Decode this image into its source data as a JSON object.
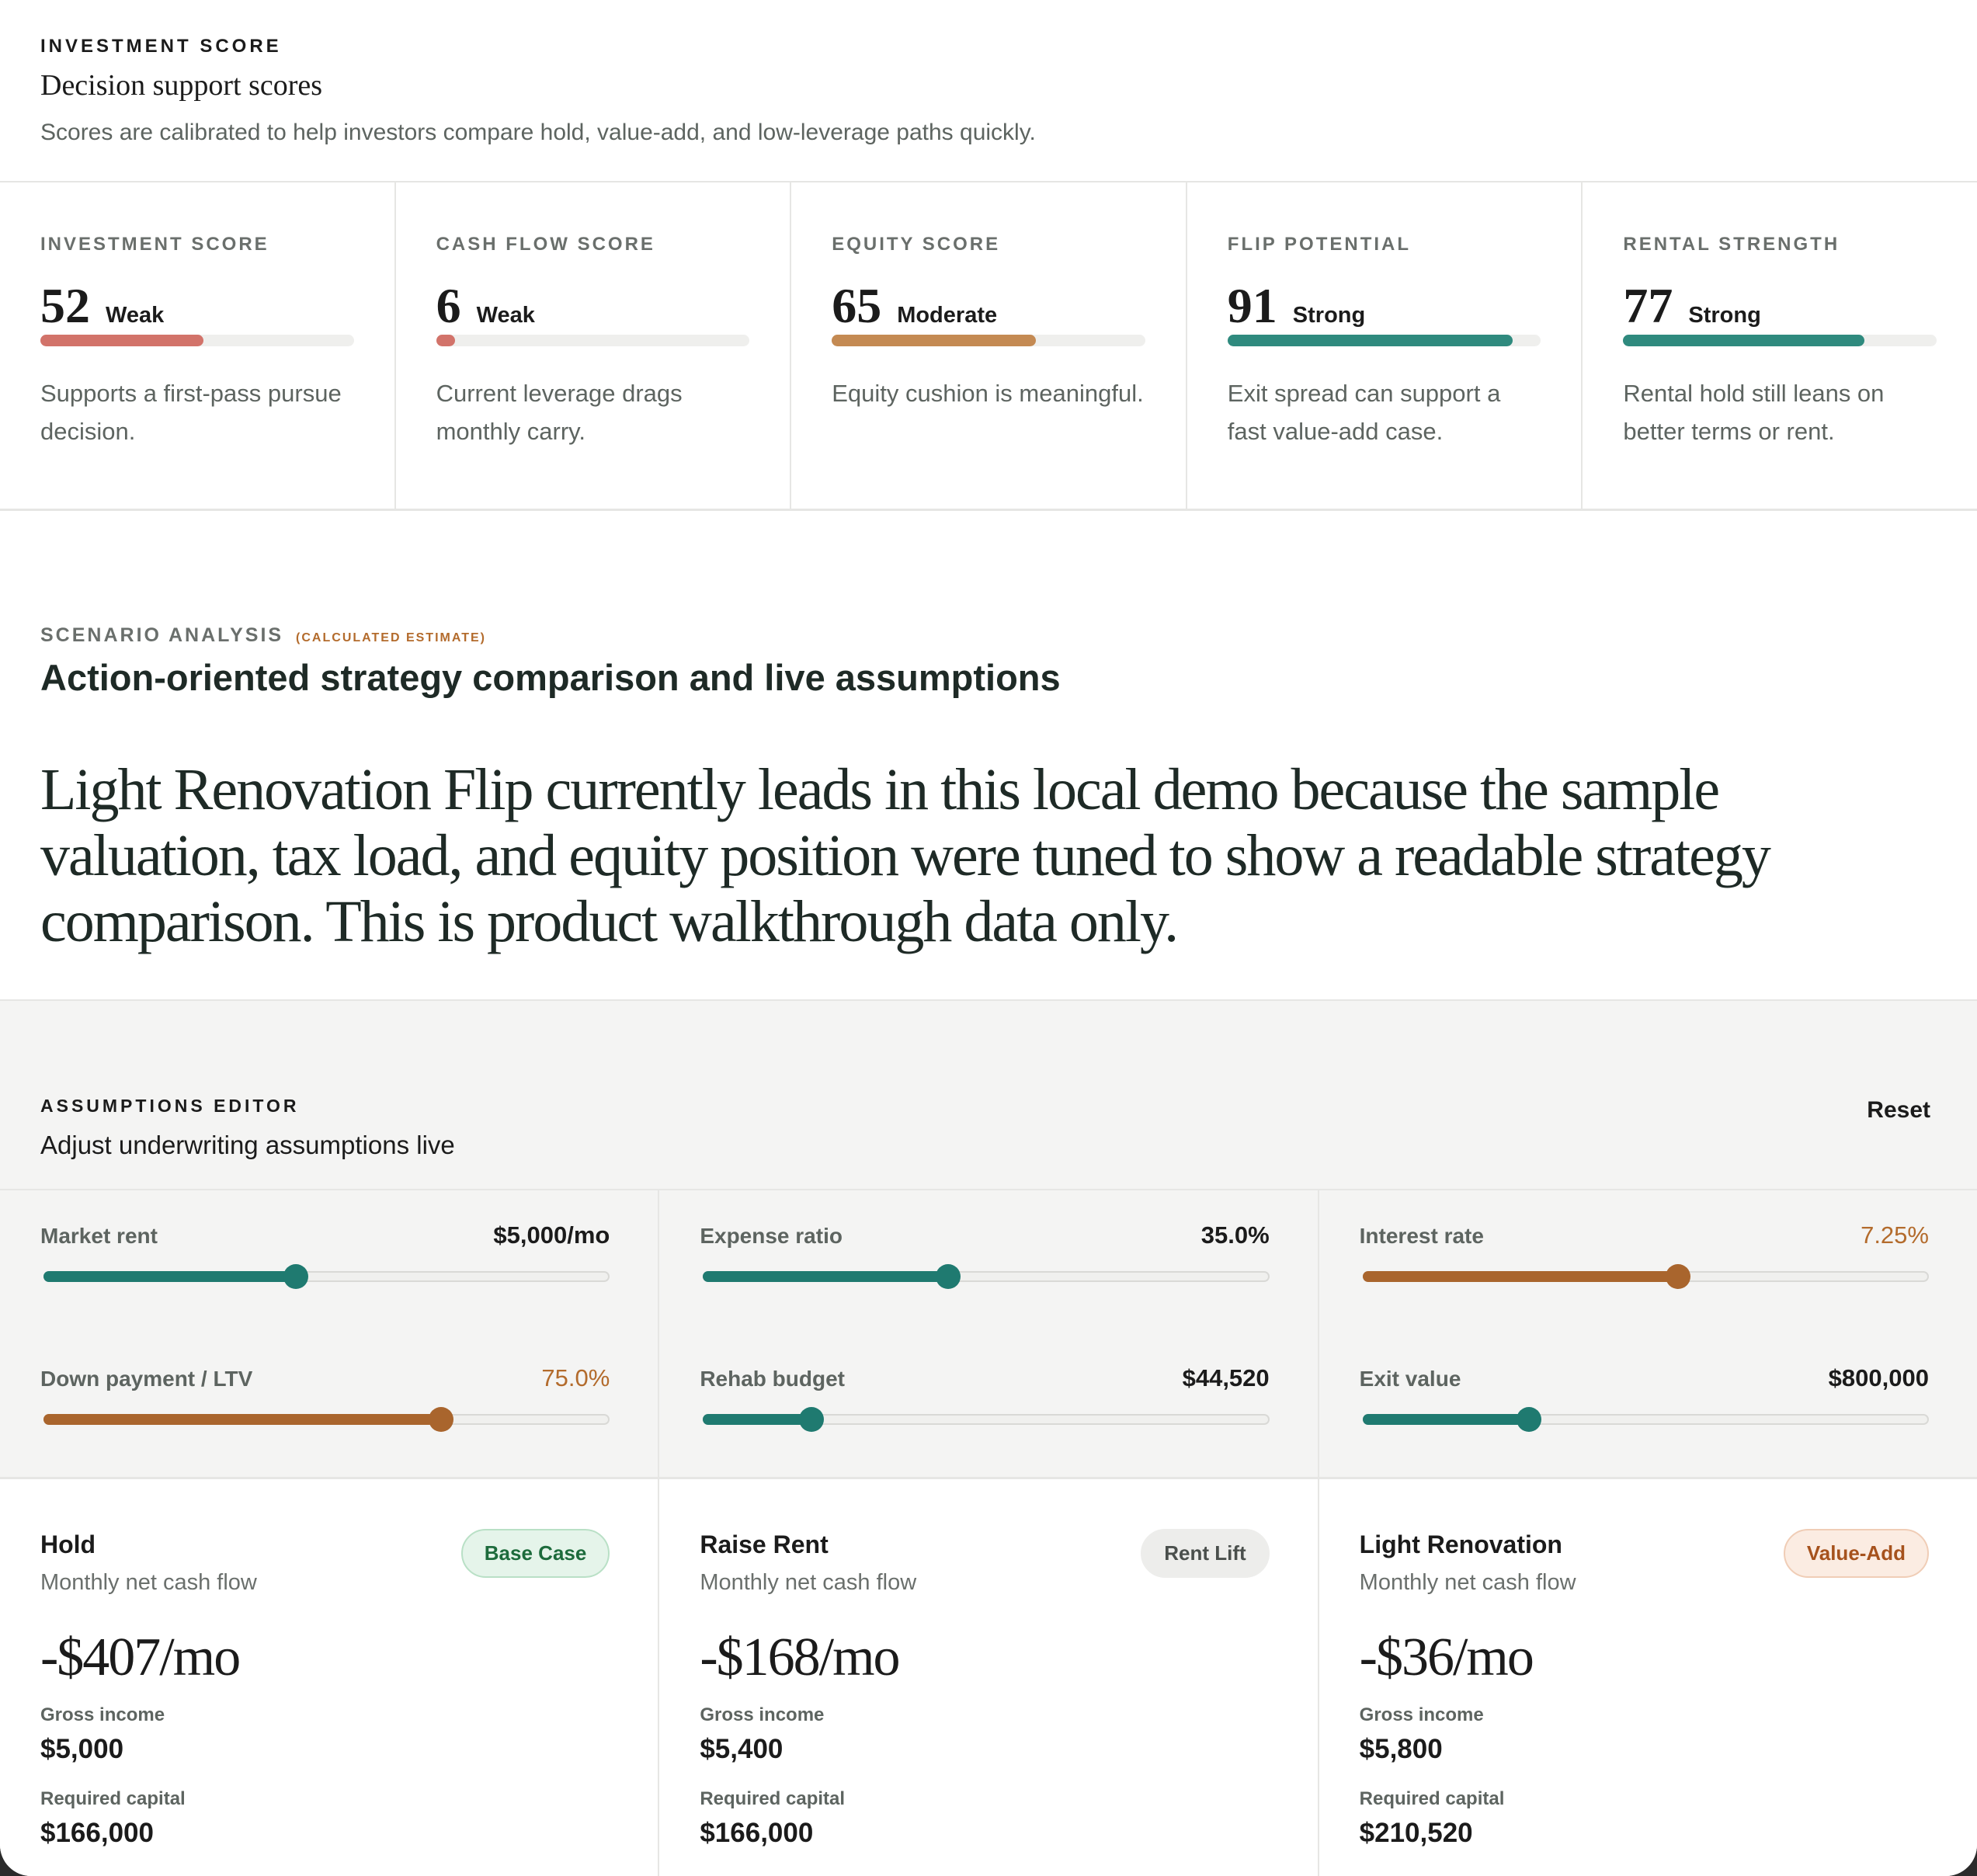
{
  "header": {
    "eyebrow": "INVESTMENT SCORE",
    "title": "Decision support scores",
    "description": "Scores are calibrated to help investors compare hold, value-add, and low-leverage paths quickly."
  },
  "scores": [
    {
      "label": "INVESTMENT SCORE",
      "value": "52",
      "rating": "Weak",
      "level": 0.52,
      "color": "#d2736a",
      "note": "Supports a first-pass pursue decision."
    },
    {
      "label": "CASH FLOW SCORE",
      "value": "6",
      "rating": "Weak",
      "level": 0.06,
      "color": "#d2736a",
      "note": "Current leverage drags monthly carry."
    },
    {
      "label": "EQUITY SCORE",
      "value": "65",
      "rating": "Moderate",
      "level": 0.65,
      "color": "#c48a53",
      "note": "Equity cushion is meaningful."
    },
    {
      "label": "FLIP POTENTIAL",
      "value": "91",
      "rating": "Strong",
      "level": 0.91,
      "color": "#2f8a7e",
      "note": "Exit spread can support a fast value-add case."
    },
    {
      "label": "RENTAL STRENGTH",
      "value": "77",
      "rating": "Strong",
      "level": 0.77,
      "color": "#2f8a7e",
      "note": "Rental hold still leans on better terms or rent."
    }
  ],
  "scenario": {
    "eyebrow": "SCENARIO ANALYSIS",
    "tag": "(CALCULATED ESTIMATE)",
    "title": "Action-oriented strategy comparison and live assumptions",
    "lead": "Light Renovation Flip currently leads in this local demo because the sample valuation, tax load, and equity position were tuned to show a readable strategy comparison. This is product walkthrough data only."
  },
  "assumptions": {
    "eyebrow": "ASSUMPTIONS EDITOR",
    "title": "Adjust underwriting assumptions live",
    "reset_label": "Reset",
    "colors": {
      "teal": "#1f7a70",
      "amber": "#a9652d"
    },
    "sliders": [
      {
        "label": "Market rent",
        "value": "$5,000/mo",
        "level": 0.445,
        "tone": "teal",
        "warn": false
      },
      {
        "label": "Down payment / LTV",
        "value": "75.0%",
        "level": 0.703,
        "tone": "amber",
        "warn": true
      },
      {
        "label": "Expense ratio",
        "value": "35.0%",
        "level": 0.433,
        "tone": "teal",
        "warn": false
      },
      {
        "label": "Rehab budget",
        "value": "$44,520",
        "level": 0.19,
        "tone": "teal",
        "warn": false
      },
      {
        "label": "Interest rate",
        "value": "7.25%",
        "level": 0.558,
        "tone": "amber",
        "warn": true
      },
      {
        "label": "Exit value",
        "value": "$800,000",
        "level": 0.293,
        "tone": "teal",
        "warn": false
      }
    ]
  },
  "strategies": [
    {
      "name": "Hold",
      "subtitle": "Monthly net cash flow",
      "badge": "Base Case",
      "badge_tone": "green",
      "cash": "-$407/mo",
      "gross_label": "Gross income",
      "gross": "$5,000",
      "capital_label": "Required capital",
      "capital": "$166,000"
    },
    {
      "name": "Raise Rent",
      "subtitle": "Monthly net cash flow",
      "badge": "Rent Lift",
      "badge_tone": "gray",
      "cash": "-$168/mo",
      "gross_label": "Gross income",
      "gross": "$5,400",
      "capital_label": "Required capital",
      "capital": "$166,000"
    },
    {
      "name": "Light Renovation",
      "subtitle": "Monthly net cash flow",
      "badge": "Value-Add",
      "badge_tone": "orange",
      "cash": "-$36/mo",
      "gross_label": "Gross income",
      "gross": "$5,800",
      "capital_label": "Required capital",
      "capital": "$210,520"
    }
  ]
}
